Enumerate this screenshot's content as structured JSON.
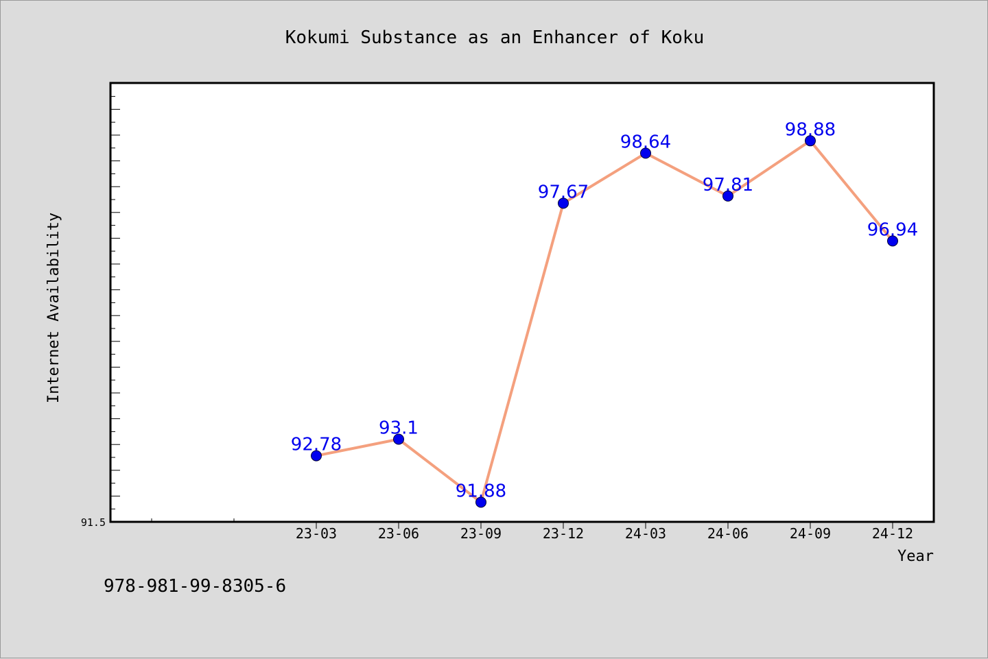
{
  "chart_data": {
    "type": "line",
    "title": "Kokumi Substance as an Enhancer of Koku",
    "xlabel": "Year",
    "ylabel": "Internet Availability",
    "categories": [
      "23-03",
      "23-06",
      "23-09",
      "23-12",
      "24-03",
      "24-06",
      "24-09",
      "24-12"
    ],
    "values": [
      92.78,
      93.1,
      91.88,
      97.67,
      98.64,
      97.81,
      98.88,
      96.94
    ],
    "data_labels": [
      "92.78",
      "93.1",
      "91.88",
      "97.67",
      "98.64",
      "97.81",
      "98.88",
      "96.94"
    ],
    "y_tick_labels": [
      "91.5"
    ],
    "ylim": [
      91.5,
      100.0
    ],
    "grid": false,
    "colors": {
      "line": "#f4a07e",
      "marker": "#0000ee",
      "data_label": "#0000ee",
      "background": "#dcdcdc",
      "plot_background": "#ffffff"
    }
  },
  "footer_text": "978-981-99-8305-6"
}
